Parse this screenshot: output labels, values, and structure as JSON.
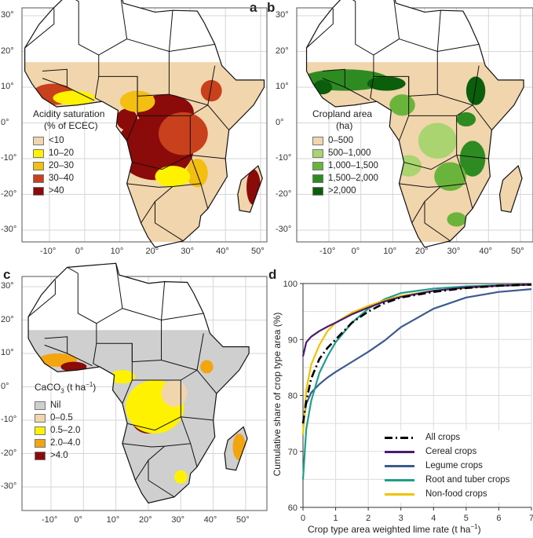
{
  "panels": {
    "a": "a",
    "b": "b",
    "c": "c",
    "d": "d"
  },
  "map_ticks": {
    "lat": [
      "30°",
      "20°",
      "10°",
      "0°",
      "-10°",
      "-20°",
      "-30°"
    ],
    "lon": [
      "-10°",
      "0°",
      "10°",
      "20°",
      "30°",
      "40°",
      "50°"
    ]
  },
  "map_a": {
    "legend_title_1": "Acidity saturation",
    "legend_title_2": "(% of ECEC)",
    "items": [
      {
        "label": "<10",
        "color": "#f1d5ac"
      },
      {
        "label": "10–20",
        "color": "#fff200"
      },
      {
        "label": "20–30",
        "color": "#f3bf10"
      },
      {
        "label": "30–40",
        "color": "#c8401c"
      },
      {
        "label": ">40",
        "color": "#8b0a0a"
      }
    ]
  },
  "map_b": {
    "legend_title_1": "Cropland area",
    "legend_title_2": "(ha)",
    "items": [
      {
        "label": "0–500",
        "color": "#f1d5ac"
      },
      {
        "label": "500–1,000",
        "color": "#a9d46f"
      },
      {
        "label": "1,000–1,500",
        "color": "#6bb43c"
      },
      {
        "label": "1,500–2,000",
        "color": "#2e8b22"
      },
      {
        "label": ">2,000",
        "color": "#0b5e0b"
      }
    ]
  },
  "map_c": {
    "legend_title_pre": "CaCO",
    "legend_title_sub": "3",
    "legend_title_post": " (t ha",
    "legend_title_sup": "−1",
    "legend_title_end": ")",
    "items": [
      {
        "label": "Nil",
        "color": "#cfcfcf"
      },
      {
        "label": "0–0.5",
        "color": "#f1d5ac"
      },
      {
        "label": "0.5–2.0",
        "color": "#fff200"
      },
      {
        "label": "2.0–4.0",
        "color": "#f3a510"
      },
      {
        "label": ">4.0",
        "color": "#8b0a0a"
      }
    ]
  },
  "chart_data": {
    "type": "line",
    "xlabel_pre": "Crop type area weighted lime rate (t ha",
    "xlabel_sup": "−1",
    "xlabel_post": ")",
    "ylabel": "Cumulative share of crop type area (%)",
    "xlim": [
      0,
      7
    ],
    "ylim": [
      60,
      100
    ],
    "xticks": [
      "0",
      "1",
      "2",
      "3",
      "4",
      "5",
      "6",
      "7"
    ],
    "yticks": [
      "60",
      "70",
      "80",
      "90",
      "100"
    ],
    "grid": true,
    "legend_position": "bottom-right",
    "x": [
      0,
      0.1,
      0.25,
      0.5,
      0.75,
      1,
      1.5,
      2,
      2.5,
      3,
      4,
      5,
      6,
      7
    ],
    "series": [
      {
        "name": "All crops",
        "color": "#000000",
        "dash": true,
        "values": [
          75,
          79,
          83,
          86.5,
          88.5,
          90,
          93,
          95,
          96.5,
          97.5,
          98.5,
          99.2,
          99.6,
          99.8
        ]
      },
      {
        "name": "Cereal crops",
        "color": "#4b1a6e",
        "values": [
          87,
          89.5,
          90.5,
          91.5,
          92.3,
          93,
          94.5,
          95.7,
          96.8,
          97.6,
          98.7,
          99.3,
          99.6,
          99.8
        ]
      },
      {
        "name": "Legume crops",
        "color": "#3b5a8f",
        "values": [
          75,
          78.5,
          80.5,
          82,
          83.2,
          84.2,
          86,
          87.8,
          89.8,
          92.2,
          95.5,
          97.5,
          98.5,
          99
        ]
      },
      {
        "name": "Root and tuber crops",
        "color": "#1f9e89",
        "values": [
          65,
          74,
          79,
          84,
          87,
          89.5,
          93,
          95.5,
          97.2,
          98.3,
          99.1,
          99.5,
          99.7,
          99.8
        ]
      },
      {
        "name": "Non-food crops",
        "color": "#f2c200",
        "values": [
          73,
          81,
          85.5,
          89,
          91.5,
          93,
          94.8,
          96,
          97,
          97.8,
          98.7,
          99.2,
          99.6,
          99.8
        ]
      }
    ]
  }
}
